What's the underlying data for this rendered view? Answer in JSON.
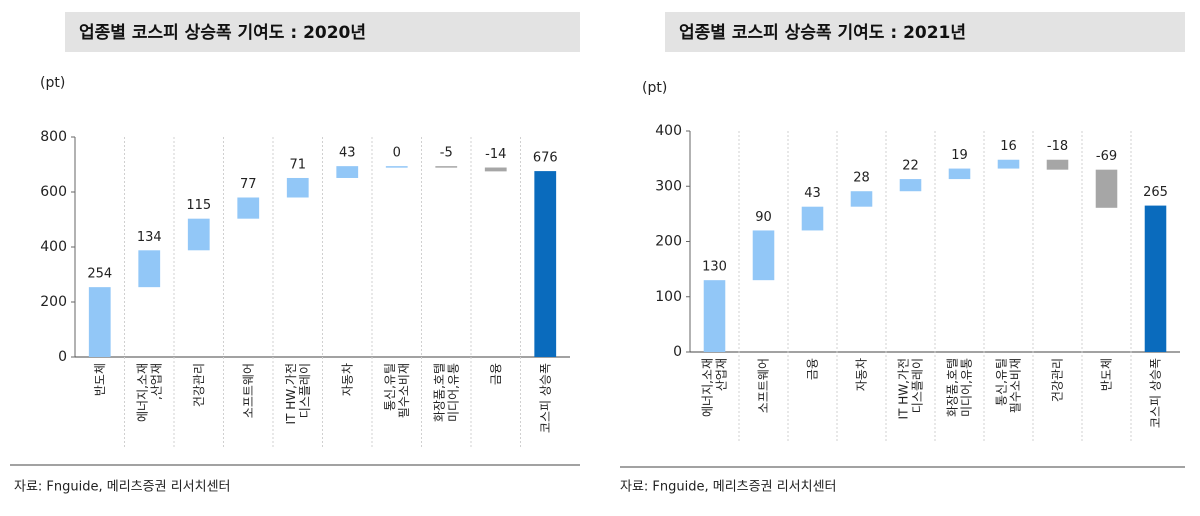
{
  "chart_data": [
    {
      "type": "waterfall",
      "title": "업종별 코스피 상승폭 기여도 : 2020년",
      "y_label": "(pt)",
      "categories": [
        "반도체",
        "에너지,소재\n,산업재",
        "건강관리",
        "소프트웨어",
        "IT HW,가전\n디스플레이",
        "자동차",
        "통신,유틸\n필수소비재",
        "화장품,호텔\n미디어,유통",
        "금융",
        "코스피 상승폭"
      ],
      "values": [
        254,
        134,
        115,
        77,
        71,
        43,
        0,
        -5,
        -14,
        676
      ],
      "colors": {
        "increase": "#92c7f7",
        "decrease": "#a6a6a6",
        "total": "#0a6bbd"
      },
      "ylim": [
        0,
        800
      ],
      "yticks": [
        0,
        200,
        400,
        600,
        800
      ],
      "source": "자료: Fnguide, 메리츠증권 리서치센터"
    },
    {
      "type": "waterfall",
      "title": "업종별 코스피 상승폭 기여도 : 2021년",
      "y_label": "(pt)",
      "categories": [
        "에너지,소재\n산업재",
        "소프트웨어",
        "금융",
        "자동차",
        "IT HW,가전\n디스플레이",
        "화장품,호텔\n미디어,유통",
        "통신,유틸\n필수소비재",
        "건강관리",
        "반도체",
        "코스피 상승폭"
      ],
      "values": [
        130,
        90,
        43,
        28,
        22,
        19,
        16,
        -18,
        -69,
        265
      ],
      "colors": {
        "increase": "#92c7f7",
        "decrease": "#a6a6a6",
        "total": "#0a6bbd"
      },
      "ylim": [
        0,
        400
      ],
      "yticks": [
        0,
        100,
        200,
        300,
        400
      ],
      "source": "자료: Fnguide, 메리츠증권 리서치센터"
    }
  ]
}
